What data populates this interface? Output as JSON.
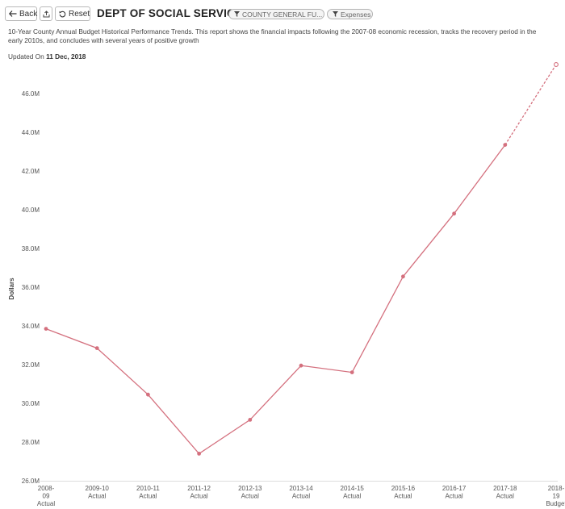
{
  "toolbar": {
    "back_label": "Back",
    "reset_label": "Reset",
    "back_icon": "arrow-left-icon",
    "share_icon": "share-icon",
    "reset_icon": "undo-icon"
  },
  "header": {
    "title": "DEPT OF SOCIAL SERVICES",
    "filters": [
      {
        "label": "COUNTY GENERAL FU...",
        "icon": "filter-icon"
      },
      {
        "label": "Expenses",
        "icon": "filter-icon"
      }
    ]
  },
  "description": "10-Year County Annual Budget Historical Performance Trends. This report shows the financial impacts following the 2007-08 economic recession, tracks the recovery period in the early 2010s, and concludes with several years of positive growth",
  "updated": {
    "prefix": "Updated On",
    "date": "11 Dec, 2018"
  },
  "colors": {
    "series": "#d4707e",
    "axis": "#dddddd"
  },
  "chart_data": {
    "type": "line",
    "ylabel": "Dollars",
    "ylim": [
      26.0,
      47.5
    ],
    "yticks": [
      26.0,
      28.0,
      30.0,
      32.0,
      34.0,
      36.0,
      38.0,
      40.0,
      42.0,
      44.0,
      46.0
    ],
    "ytick_labels": [
      "26.0M",
      "28.0M",
      "30.0M",
      "32.0M",
      "34.0M",
      "36.0M",
      "38.0M",
      "40.0M",
      "42.0M",
      "44.0M",
      "46.0M"
    ],
    "categories": [
      [
        "2008-",
        "09",
        "Actual"
      ],
      [
        "2009-10",
        "Actual"
      ],
      [
        "2010-11",
        "Actual"
      ],
      [
        "2011-12",
        "Actual"
      ],
      [
        "2012-13",
        "Actual"
      ],
      [
        "2013-14",
        "Actual"
      ],
      [
        "2014-15",
        "Actual"
      ],
      [
        "2015-16",
        "Actual"
      ],
      [
        "2016-17",
        "Actual"
      ],
      [
        "2017-18",
        "Actual"
      ],
      [
        "2018-",
        "19",
        "Budget"
      ]
    ],
    "series": [
      {
        "values": [
          33.85,
          32.85,
          30.45,
          27.4,
          29.15,
          31.95,
          31.6,
          36.55,
          39.8,
          43.35,
          47.5
        ],
        "projected_from_index": 9
      }
    ],
    "grid": false
  }
}
